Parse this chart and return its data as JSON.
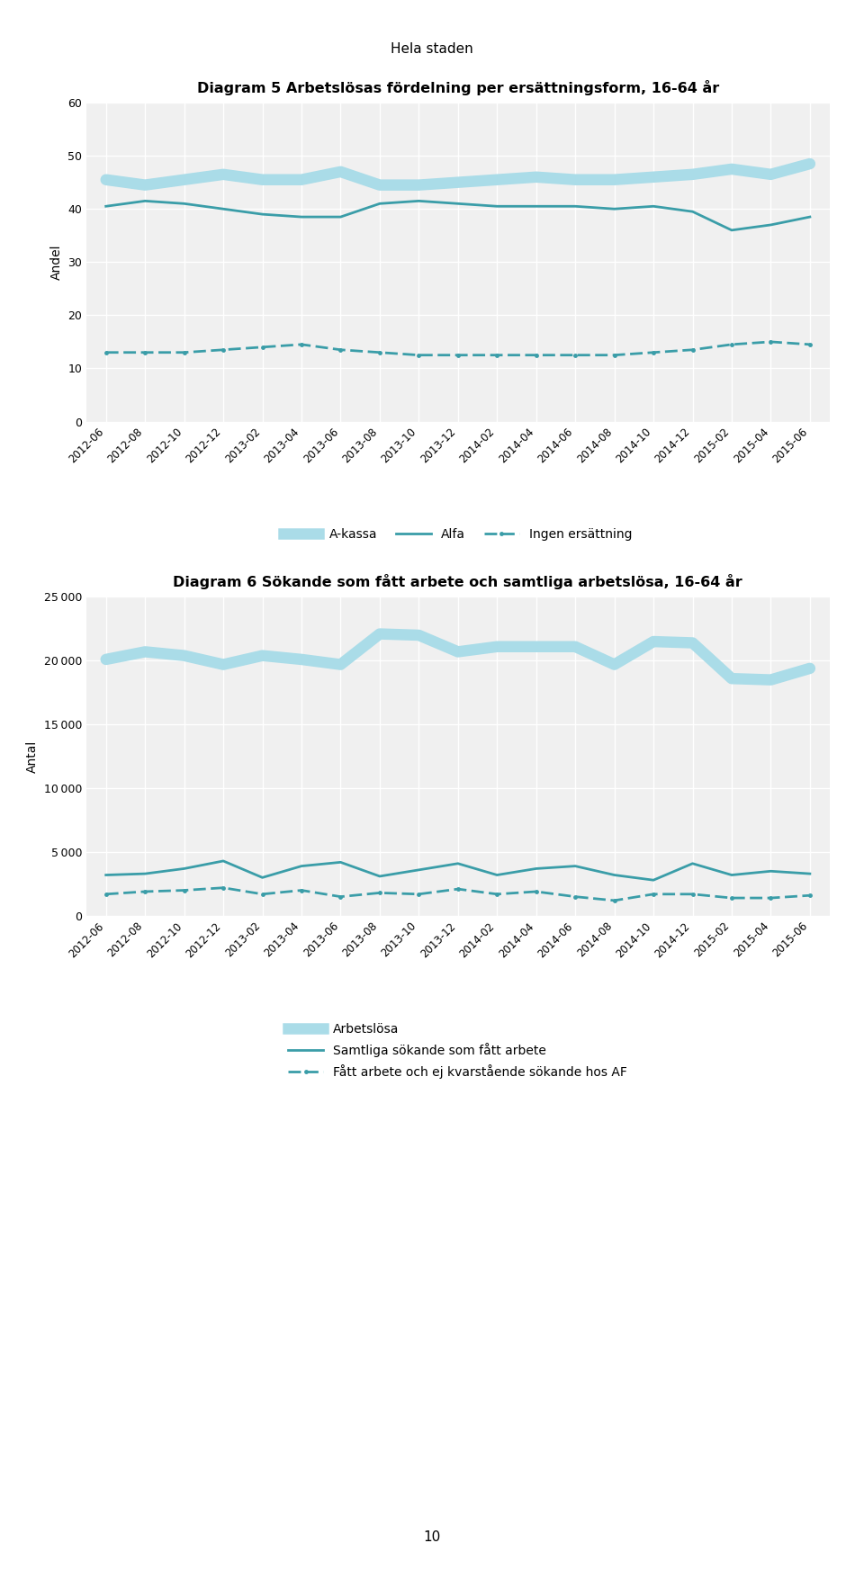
{
  "page_title": "Hela staden",
  "page_number": "10",
  "chart1_title": "Diagram 5 Arbetslösas fördelning per ersättningsform, 16-64 år",
  "chart1_ylabel": "Andel",
  "chart1_ylim": [
    0,
    60
  ],
  "chart1_yticks": [
    0,
    10,
    20,
    30,
    40,
    50,
    60
  ],
  "chart2_title": "Diagram 6 Sökande som fått arbete och samtliga arbetslösa, 16-64 år",
  "chart2_ylabel": "Antal",
  "chart2_ylim": [
    0,
    25000
  ],
  "chart2_yticks": [
    0,
    5000,
    10000,
    15000,
    20000,
    25000
  ],
  "x_labels": [
    "2012-06",
    "2012-08",
    "2012-10",
    "2012-12",
    "2013-02",
    "2013-04",
    "2013-06",
    "2013-08",
    "2013-10",
    "2013-12",
    "2014-02",
    "2014-04",
    "2014-06",
    "2014-08",
    "2014-10",
    "2014-12",
    "2015-02",
    "2015-04",
    "2015-06"
  ],
  "akassa": [
    45.5,
    44.5,
    45.5,
    46.5,
    45.5,
    45.5,
    47.0,
    44.5,
    44.5,
    45.0,
    45.5,
    46.0,
    45.5,
    45.5,
    46.0,
    46.5,
    47.5,
    46.5,
    48.5
  ],
  "alfa": [
    40.5,
    41.5,
    41.0,
    40.0,
    39.0,
    38.5,
    38.5,
    41.0,
    41.5,
    41.0,
    40.5,
    40.5,
    40.5,
    40.0,
    40.5,
    39.5,
    36.0,
    37.0,
    38.5
  ],
  "ingen": [
    13.0,
    13.0,
    13.0,
    13.5,
    14.0,
    14.5,
    13.5,
    13.0,
    12.5,
    12.5,
    12.5,
    12.5,
    12.5,
    12.5,
    13.0,
    13.5,
    14.5,
    15.0,
    14.5
  ],
  "arbetslosa": [
    20100,
    20700,
    20400,
    19700,
    20400,
    20100,
    19700,
    22100,
    22000,
    20700,
    21100,
    21100,
    21100,
    19700,
    21500,
    21400,
    18600,
    18500,
    19400
  ],
  "samtliga": [
    3200,
    3300,
    3700,
    4300,
    3000,
    3900,
    4200,
    3100,
    3600,
    4100,
    3200,
    3700,
    3900,
    3200,
    2800,
    4100,
    3200,
    3500,
    3300
  ],
  "fatt_ej": [
    1700,
    1900,
    2000,
    2200,
    1700,
    2000,
    1500,
    1800,
    1700,
    2100,
    1700,
    1900,
    1500,
    1200,
    1700,
    1700,
    1400,
    1400,
    1600
  ],
  "color_light": "#aadce8",
  "color_teal": "#3a9da8",
  "background": "#f0f0f0"
}
